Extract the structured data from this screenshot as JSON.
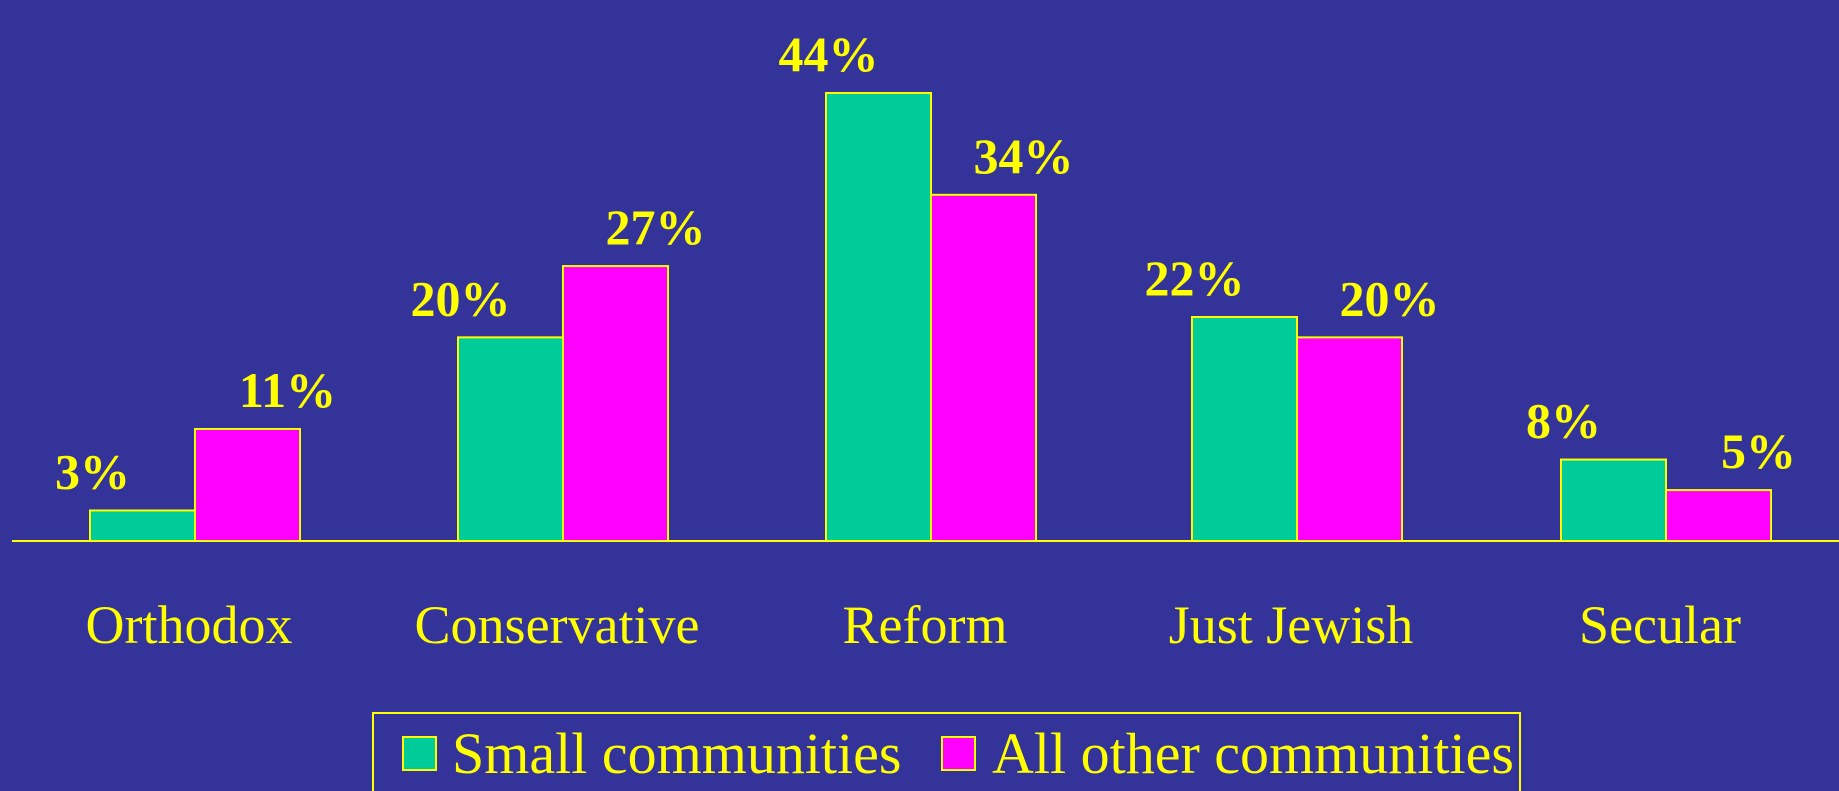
{
  "colors": {
    "background": "#333399",
    "text": "#ffff00",
    "axis": "#ffff00",
    "bar_outline": "#ffff00"
  },
  "chart_data": {
    "type": "bar",
    "title": "",
    "xlabel": "",
    "ylabel": "",
    "ylim": [
      0,
      44
    ],
    "grid": false,
    "legend_placement": "bottom-center",
    "categories": [
      "Orthodox",
      "Conservative",
      "Reform",
      "Just Jewish",
      "Secular"
    ],
    "series": [
      {
        "name": "Small communities",
        "color": "#00cc99",
        "values": [
          3,
          20,
          44,
          22,
          8
        ],
        "labels": [
          "3%",
          "20%",
          "44%",
          "22%",
          "8%"
        ]
      },
      {
        "name": "All other communities",
        "color": "#ff00ff",
        "values": [
          11,
          27,
          34,
          20,
          5
        ],
        "labels": [
          "11%",
          "27%",
          "34%",
          "20%",
          "5%"
        ]
      }
    ]
  }
}
